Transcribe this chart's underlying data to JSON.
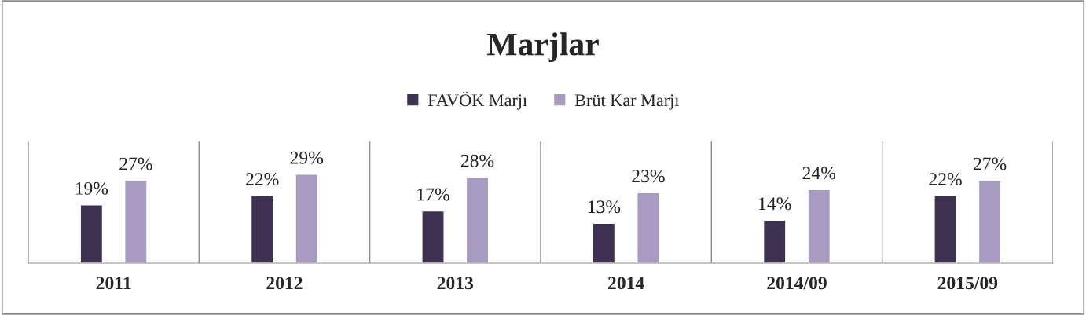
{
  "chart_data": {
    "type": "bar",
    "title": "Marjlar",
    "categories": [
      "2011",
      "2012",
      "2013",
      "2014",
      "2014/09",
      "2015/09"
    ],
    "series": [
      {
        "name": "FAVÖK Marjı",
        "color": "#3f3151",
        "values": [
          19,
          22,
          17,
          13,
          14,
          22
        ],
        "value_labels": [
          "19%",
          "22%",
          "17%",
          "13%",
          "14%",
          "22%"
        ]
      },
      {
        "name": "Brüt Kar Marjı",
        "color": "#a89bc1",
        "values": [
          27,
          29,
          28,
          23,
          24,
          27
        ],
        "value_labels": [
          "27%",
          "29%",
          "28%",
          "23%",
          "24%",
          "27%"
        ]
      }
    ],
    "legend": "top",
    "grid": "x",
    "tick_labels": "x"
  }
}
